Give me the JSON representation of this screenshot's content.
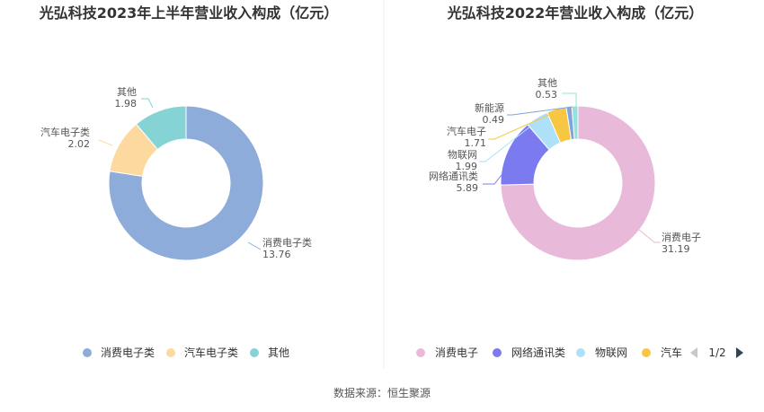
{
  "chart_data": [
    {
      "type": "pie",
      "variant": "donut",
      "title": "光弘科技2023年上半年营业收入构成（亿元）",
      "unit": "亿元",
      "categories": [
        "消费电子类",
        "汽车电子类",
        "其他"
      ],
      "values": [
        13.76,
        2.02,
        1.98
      ],
      "value_labels": [
        "13.76",
        "2.02",
        "1.98"
      ],
      "colors": [
        "#8eacd9",
        "#fdd9a0",
        "#86d3d6"
      ],
      "legend": {
        "placement": "bottom",
        "items": [
          "消费电子类",
          "汽车电子类",
          "其他"
        ]
      }
    },
    {
      "type": "pie",
      "variant": "donut",
      "title": "光弘科技2022年营业收入构成（亿元）",
      "unit": "亿元",
      "categories": [
        "消费电子",
        "网络通讯类",
        "物联网",
        "汽车电子",
        "新能源",
        "其他"
      ],
      "values": [
        31.19,
        5.89,
        1.99,
        1.71,
        0.49,
        0.53
      ],
      "value_labels": [
        "31.19",
        "5.89",
        "1.99",
        "1.71",
        "0.49",
        "0.53"
      ],
      "colors": [
        "#e8b9d9",
        "#7b7bef",
        "#aee0f7",
        "#f7c744",
        "#7fa3dc",
        "#95e0dc"
      ],
      "legend": {
        "placement": "bottom",
        "items": [
          "消费电子",
          "网络通讯类",
          "物联网",
          "汽车"
        ],
        "page": "1/2"
      }
    }
  ],
  "footer": {
    "source": "数据来源：恒生聚源"
  }
}
